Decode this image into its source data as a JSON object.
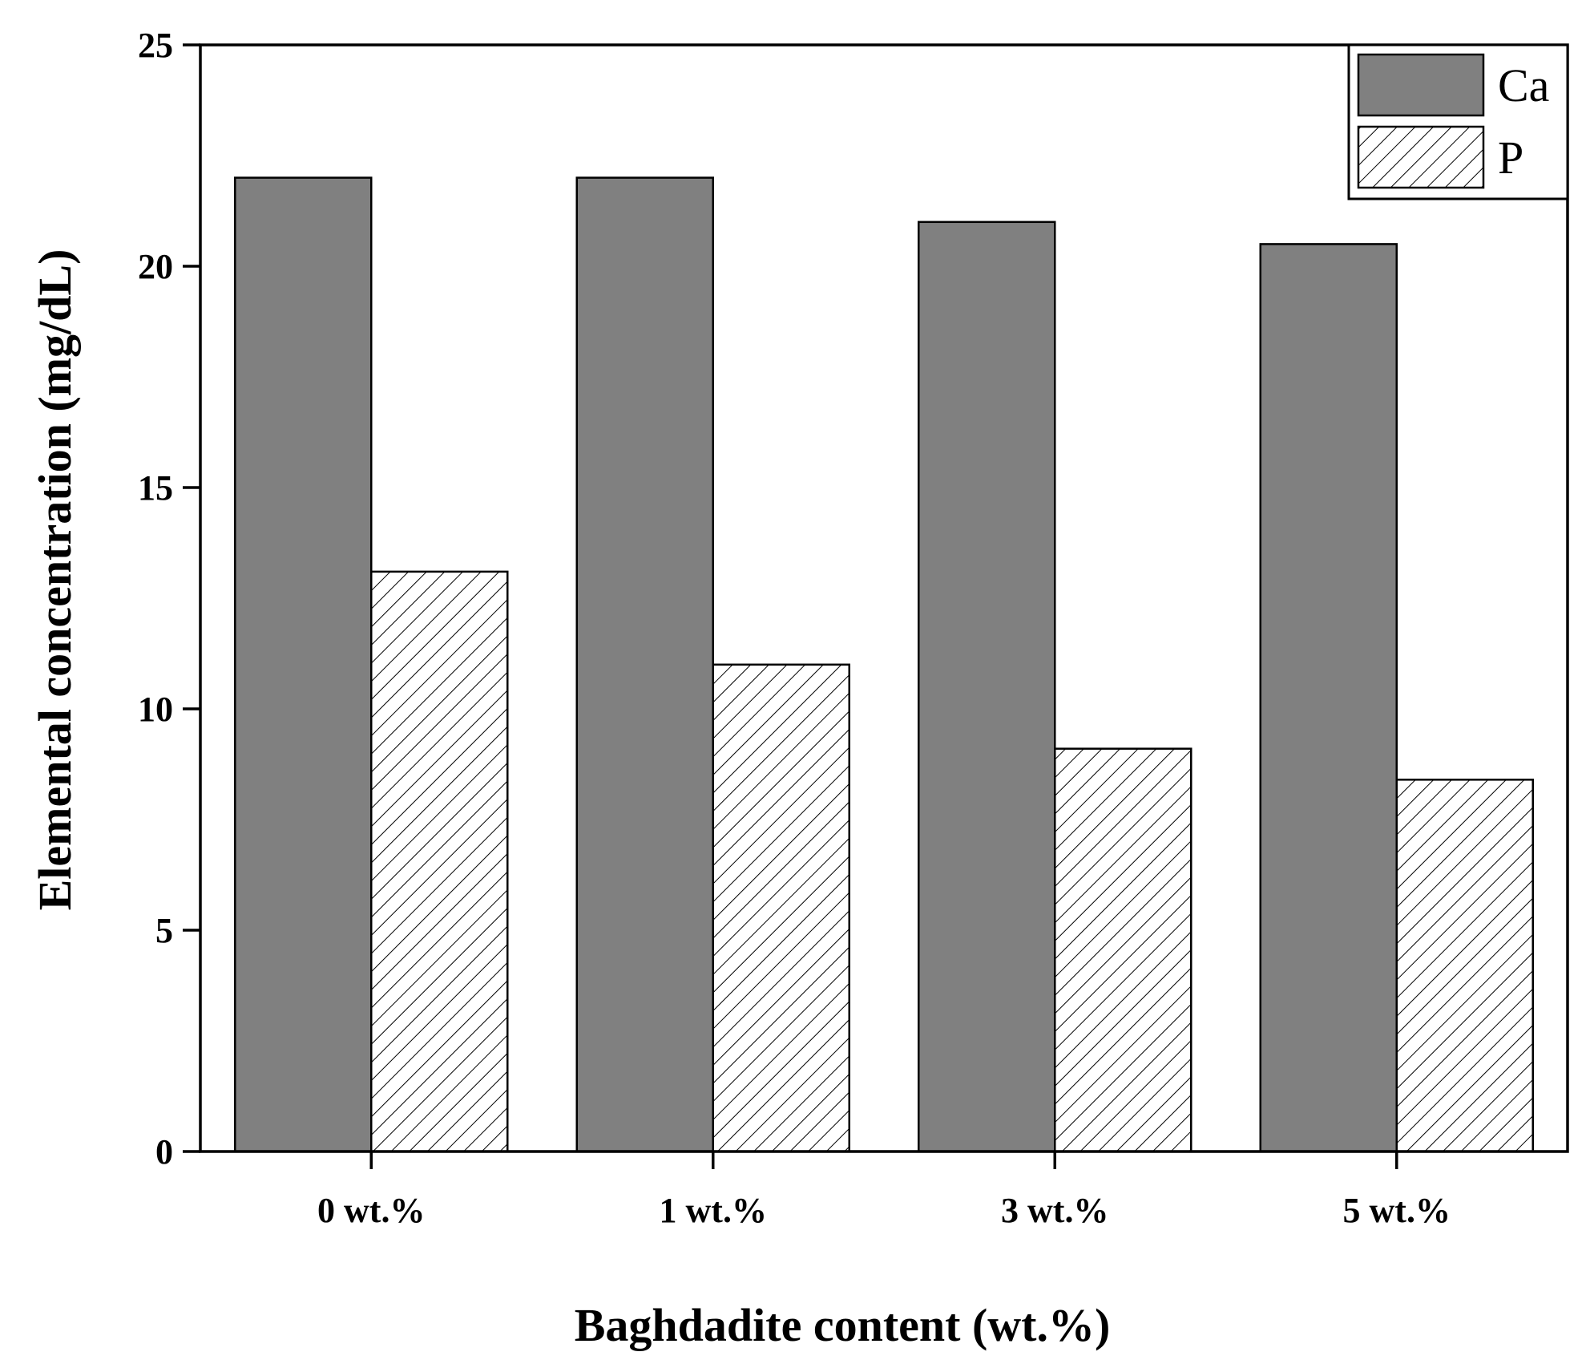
{
  "chart_data": {
    "type": "bar",
    "title": "",
    "xlabel": "Baghdadite content (wt.%)",
    "ylabel": "Elemental concentration (mg/dL)",
    "categories": [
      "0 wt.%",
      "1 wt.%",
      "3 wt.%",
      "5 wt.%"
    ],
    "series": [
      {
        "name": "Ca",
        "values": [
          22.0,
          22.0,
          21.0,
          20.5
        ],
        "fill": "#808080",
        "pattern": "solid"
      },
      {
        "name": "P",
        "values": [
          13.1,
          11.0,
          9.1,
          8.4
        ],
        "fill": "#ffffff",
        "pattern": "diagonal-hatch"
      }
    ],
    "ylim": [
      0,
      25
    ],
    "yticks": [
      "0",
      "5",
      "10",
      "15",
      "20",
      "25"
    ],
    "grid": false,
    "legend_position": "top-right",
    "colors": {
      "ca_fill": "#808080",
      "p_fill": "#ffffff",
      "outline": "#000000"
    }
  }
}
